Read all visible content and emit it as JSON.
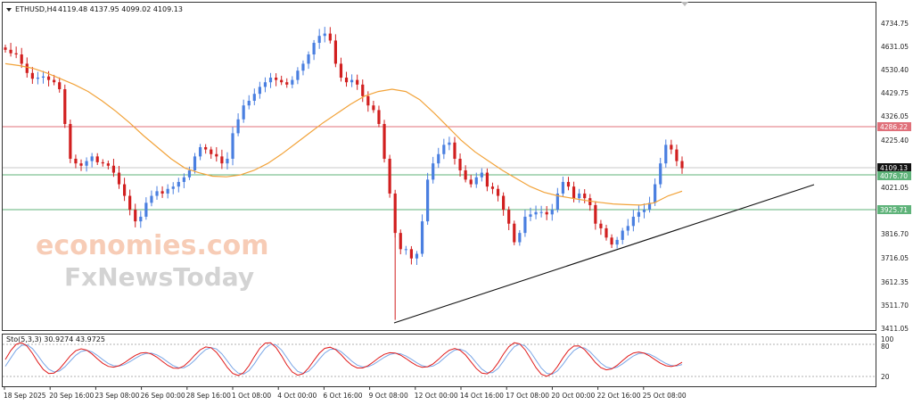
{
  "header": {
    "symbol": "ETHUSD,H4",
    "ohlc": "4119.48 4137.95 4099.02 4109.13",
    "oscillator": "Sto(5,3,3) 30.9274 43.9725"
  },
  "watermark": {
    "line1": "economies.com",
    "line2": "FxNewsToday"
  },
  "price_axis": [
    "4734.75",
    "4631.05",
    "4530.40",
    "4429.75",
    "4326.05",
    "4225.40",
    "4021.05",
    "3816.70",
    "3716.05",
    "3612.35",
    "3511.70",
    "3411.05"
  ],
  "price_tags": {
    "resistance": "4286.22",
    "current": "4109.13",
    "support1": "4076.70",
    "support2": "3925.71"
  },
  "stoch_axis": {
    "top": "100",
    "upper": "80",
    "lower": "20"
  },
  "time_axis": [
    "18 Sep 2025",
    "20 Sep 16:00",
    "23 Sep 08:00",
    "26 Sep 00:00",
    "28 Sep 16:00",
    "1 Oct 08:00",
    "4 Oct 00:00",
    "6 Oct 16:00",
    "9 Oct 08:00",
    "12 Oct 00:00",
    "14 Oct 16:00",
    "17 Oct 08:00",
    "20 Oct 00:00",
    "22 Oct 16:00",
    "25 Oct 08:00"
  ],
  "colors": {
    "bull": "#4a7fe0",
    "bear": "#d11f1f",
    "ma": "#f2a33a",
    "resistance": "#e0707a",
    "support": "#5fb37a",
    "trend": "#111111",
    "stoch_main": "#e01b1b",
    "stoch_signal": "#7aa6e6"
  },
  "chart_data": {
    "type": "candlestick",
    "symbol": "ETHUSD",
    "timeframe": "H4",
    "ylim": [
      3411.05,
      4734.75
    ],
    "levels": {
      "resistance": 4286.22,
      "last": 4109.13,
      "support_1": 4076.7,
      "support_2": 3925.71
    },
    "close_series": [
      4620,
      4605,
      4600,
      4560,
      4520,
      4495,
      4500,
      4505,
      4490,
      4480,
      4450,
      4300,
      4150,
      4130,
      4120,
      4140,
      4160,
      4135,
      4130,
      4120,
      4090,
      4040,
      3990,
      3930,
      3880,
      3900,
      3960,
      3990,
      4010,
      4000,
      4020,
      4030,
      4050,
      4070,
      4100,
      4160,
      4200,
      4190,
      4170,
      4160,
      4130,
      4150,
      4260,
      4320,
      4380,
      4400,
      4430,
      4460,
      4480,
      4500,
      4490,
      4480,
      4470,
      4490,
      4530,
      4560,
      4600,
      4650,
      4680,
      4690,
      4660,
      4560,
      4500,
      4480,
      4490,
      4470,
      4420,
      4380,
      4360,
      4300,
      4150,
      4000,
      3830,
      3760,
      3760,
      3720,
      3740,
      3880,
      4060,
      4130,
      4170,
      4210,
      4220,
      4150,
      4100,
      4060,
      4040,
      4070,
      4090,
      4030,
      4020,
      3990,
      3930,
      3870,
      3790,
      3830,
      3900,
      3910,
      3920,
      3920,
      3910,
      3930,
      4000,
      4050,
      4030,
      3980,
      4000,
      3980,
      3950,
      3870,
      3850,
      3810,
      3780,
      3800,
      3840,
      3860,
      3900,
      3920,
      3930,
      3960,
      4040,
      4130,
      4210,
      4190,
      4140,
      4109.13
    ],
    "moving_average": [
      4560,
      4552,
      4540,
      4520,
      4495,
      4470,
      4440,
      4400,
      4355,
      4305,
      4250,
      4200,
      4150,
      4110,
      4090,
      4075,
      4072,
      4080,
      4100,
      4130,
      4170,
      4215,
      4260,
      4305,
      4345,
      4385,
      4420,
      4440,
      4450,
      4440,
      4405,
      4350,
      4290,
      4230,
      4180,
      4140,
      4100,
      4065,
      4030,
      4005,
      3990,
      3980,
      3970,
      3962,
      3955,
      3952,
      3950,
      3960,
      3990,
      4010
    ],
    "trendline": {
      "from": 3465,
      "to": 4035
    },
    "stochastic": {
      "k": 30.9274,
      "d": 43.9725,
      "levels": [
        20,
        80
      ]
    }
  }
}
